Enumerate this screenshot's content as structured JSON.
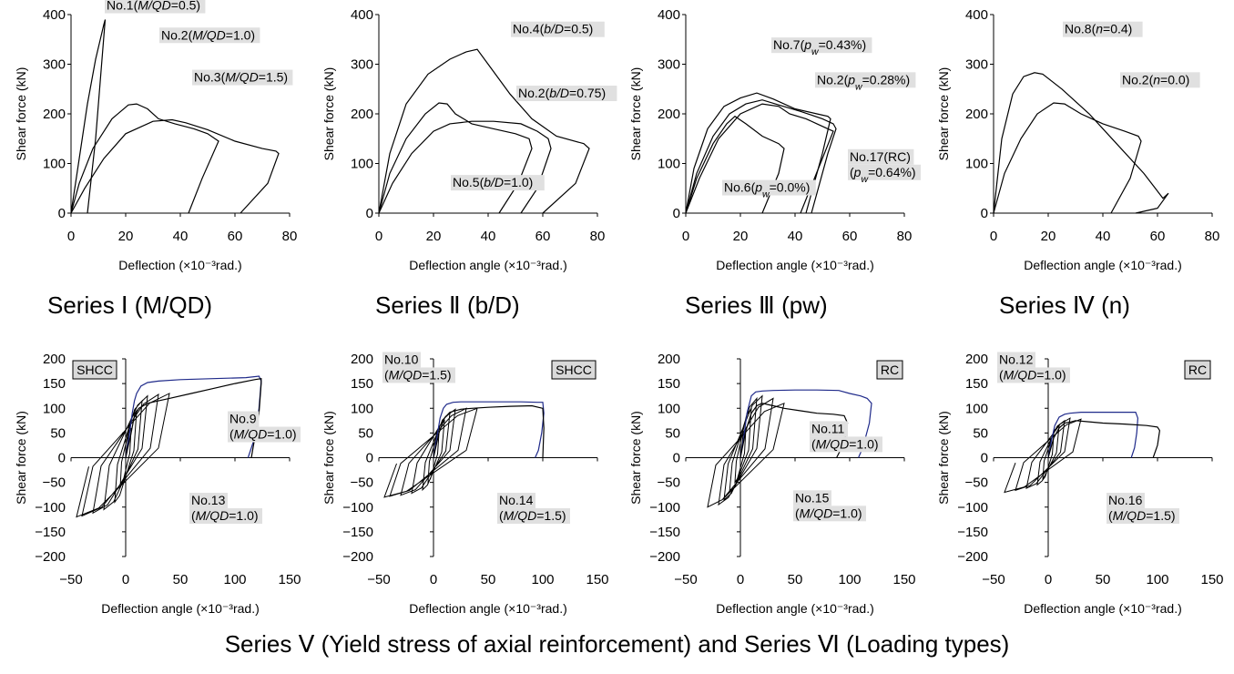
{
  "captions": {
    "series1": "Series Ⅰ (M/QD)",
    "series2": "Series Ⅱ (b/D)",
    "series3": "Series Ⅲ (pw)",
    "series4": "Series Ⅳ (n)",
    "bottom": "Series Ⅴ (Yield stress of axial reinforcement) and Series Ⅵ (Loading types)"
  },
  "chart_data": [
    {
      "id": "p1",
      "type": "line",
      "xlabel": "Deflection (×10⁻³rad.)",
      "ylabel": "Shear force (kN)",
      "xlim": [
        0,
        80
      ],
      "ylim": [
        0,
        400
      ],
      "xticks": [
        0,
        20,
        40,
        60,
        80
      ],
      "yticks": [
        0,
        100,
        200,
        300,
        400
      ],
      "series": [
        {
          "x": [
            0,
            3,
            6,
            9,
            12,
            12.5,
            9,
            6
          ],
          "y": [
            0,
            110,
            220,
            310,
            380,
            390,
            150,
            0
          ]
        },
        {
          "x": [
            0,
            3,
            8,
            15,
            21,
            24,
            28,
            32,
            38,
            45,
            50,
            54,
            48,
            43
          ],
          "y": [
            0,
            60,
            130,
            190,
            218,
            220,
            210,
            190,
            180,
            170,
            160,
            145,
            70,
            0
          ]
        },
        {
          "x": [
            0,
            5,
            12,
            20,
            30,
            37,
            42,
            50,
            60,
            70,
            75,
            76,
            72,
            62
          ],
          "y": [
            0,
            50,
            110,
            160,
            185,
            188,
            182,
            168,
            145,
            130,
            125,
            120,
            60,
            0
          ]
        }
      ],
      "annotations": [
        {
          "text": "No.1(M/QD=0.5)",
          "x": 13,
          "y": 410
        },
        {
          "text": "No.2(M/QD=1.0)",
          "x": 33,
          "y": 350
        },
        {
          "text": "No.3(M/QD=1.5)",
          "x": 45,
          "y": 265
        }
      ]
    },
    {
      "id": "p2",
      "type": "line",
      "xlabel": "Deflection angle (×10⁻³rad.)",
      "ylabel": "Shear force (kN)",
      "xlim": [
        0,
        80
      ],
      "ylim": [
        0,
        400
      ],
      "xticks": [
        0,
        20,
        40,
        60,
        80
      ],
      "yticks": [
        0,
        100,
        200,
        300,
        400
      ],
      "series": [
        {
          "x": [
            0,
            4,
            10,
            18,
            26,
            32,
            36,
            40,
            48,
            56,
            65,
            75,
            77,
            72,
            60
          ],
          "y": [
            0,
            120,
            220,
            280,
            310,
            325,
            330,
            300,
            240,
            190,
            155,
            140,
            130,
            60,
            0
          ]
        },
        {
          "x": [
            0,
            4,
            10,
            17,
            22,
            25,
            28,
            34,
            42,
            50,
            55,
            56,
            51,
            44
          ],
          "y": [
            0,
            80,
            150,
            200,
            222,
            220,
            200,
            180,
            170,
            160,
            150,
            130,
            60,
            0
          ]
        },
        {
          "x": [
            0,
            5,
            12,
            20,
            26,
            34,
            42,
            52,
            58,
            62,
            63,
            58,
            52
          ],
          "y": [
            0,
            60,
            120,
            165,
            180,
            185,
            185,
            180,
            165,
            150,
            130,
            50,
            0
          ]
        }
      ],
      "annotations": [
        {
          "text": "No.4(b/D=0.5)",
          "x": 49,
          "y": 362
        },
        {
          "text": "No.2(b/D=0.75)",
          "x": 51,
          "y": 233
        },
        {
          "text": "No.5(b/D=1.0)",
          "x": 27,
          "y": 53
        }
      ]
    },
    {
      "id": "p3",
      "type": "line",
      "xlabel": "Deflection angle (×10⁻³rad.)",
      "ylabel": "Shear force (kN)",
      "xlim": [
        0,
        80
      ],
      "ylim": [
        0,
        400
      ],
      "xticks": [
        0,
        20,
        40,
        60,
        80
      ],
      "yticks": [
        0,
        100,
        200,
        300,
        400
      ],
      "series": [
        {
          "x": [
            0,
            3,
            8,
            14,
            20,
            26,
            32,
            40,
            48,
            52,
            53,
            50,
            44
          ],
          "y": [
            0,
            90,
            170,
            215,
            232,
            242,
            230,
            210,
            200,
            195,
            190,
            120,
            0
          ]
        },
        {
          "x": [
            0,
            4,
            10,
            16,
            22,
            28,
            34,
            42,
            50,
            54,
            55,
            52,
            46
          ],
          "y": [
            0,
            80,
            155,
            200,
            220,
            228,
            218,
            205,
            190,
            180,
            170,
            120,
            0
          ]
        },
        {
          "x": [
            0,
            4,
            10,
            15,
            18,
            22,
            28,
            34,
            36,
            34,
            28
          ],
          "y": [
            0,
            70,
            140,
            180,
            195,
            180,
            155,
            140,
            130,
            80,
            0
          ]
        },
        {
          "x": [
            0,
            5,
            12,
            20,
            28,
            34,
            38,
            44,
            48,
            52,
            54,
            50,
            42
          ],
          "y": [
            0,
            70,
            150,
            200,
            220,
            215,
            200,
            190,
            180,
            170,
            165,
            110,
            0
          ]
        }
      ],
      "annotations": [
        {
          "text": "No.7(pw=0.43%)",
          "x": 32,
          "y": 330
        },
        {
          "text": "No.2(pw=0.28%)",
          "x": 48,
          "y": 260
        },
        {
          "text": "No.17(RC) (pw=0.64%)",
          "x": 60,
          "y": 105
        },
        {
          "text": "No.6(pw=0.0%)",
          "x": 14,
          "y": 43
        }
      ]
    },
    {
      "id": "p4",
      "type": "line",
      "xlabel": "Deflection angle (×10⁻³rad.)",
      "ylabel": "Shear force (kN)",
      "xlim": [
        0,
        80
      ],
      "ylim": [
        0,
        400
      ],
      "xticks": [
        0,
        20,
        40,
        60,
        80
      ],
      "yticks": [
        0,
        100,
        200,
        300,
        400
      ],
      "series": [
        {
          "x": [
            0,
            3,
            7,
            11,
            15,
            18,
            25,
            35,
            45,
            55,
            62,
            64,
            60,
            52
          ],
          "y": [
            0,
            150,
            240,
            275,
            283,
            280,
            250,
            200,
            140,
            80,
            30,
            40,
            10,
            0
          ]
        },
        {
          "x": [
            0,
            4,
            10,
            16,
            22,
            26,
            32,
            40,
            48,
            53,
            54,
            50,
            43
          ],
          "y": [
            0,
            80,
            150,
            200,
            222,
            220,
            200,
            180,
            165,
            155,
            145,
            70,
            0
          ]
        }
      ],
      "annotations": [
        {
          "text": "No.8(n=0.4)",
          "x": 26,
          "y": 362
        },
        {
          "text": "No.2(n=0.0)",
          "x": 47,
          "y": 260
        }
      ]
    },
    {
      "id": "p5",
      "type": "line",
      "xlabel": "Deflection angle (×10⁻³rad.)",
      "ylabel": "Shear force (kN)",
      "xlim": [
        -50,
        150
      ],
      "ylim": [
        -200,
        200
      ],
      "xticks": [
        -50,
        0,
        50,
        100,
        150
      ],
      "yticks": [
        -200,
        -150,
        -100,
        -50,
        0,
        50,
        100,
        150,
        200
      ],
      "series": [
        {
          "color": "#1f2a8a",
          "x": [
            0,
            3,
            6,
            8,
            10,
            14,
            20,
            30,
            50,
            80,
            110,
            122,
            124,
            122,
            118,
            112
          ],
          "y": [
            0,
            40,
            90,
            115,
            130,
            145,
            152,
            155,
            158,
            160,
            162,
            165,
            155,
            100,
            40,
            0
          ]
        },
        {
          "color": "#000000",
          "x": [
            0,
            5,
            8,
            12,
            20,
            30,
            40,
            60,
            80,
            100,
            118,
            124,
            124,
            122,
            115
          ],
          "y": [
            0,
            50,
            85,
            100,
            110,
            115,
            120,
            130,
            140,
            150,
            158,
            160,
            150,
            90,
            0
          ]
        }
      ],
      "cyclic": {
        "pos_peaks": [
          [
            5,
            60
          ],
          [
            10,
            95
          ],
          [
            15,
            115
          ],
          [
            20,
            125
          ],
          [
            30,
            128
          ],
          [
            40,
            130
          ]
        ],
        "neg_peaks": [
          [
            -5,
            -60
          ],
          [
            -10,
            -90
          ],
          [
            -20,
            -105
          ],
          [
            -30,
            -112
          ],
          [
            -40,
            -118
          ],
          [
            -45,
            -120
          ]
        ]
      },
      "tag": "SHCC",
      "annotations": [
        {
          "text": "No.9 (M/QD=1.0)",
          "x": 95,
          "y": 70
        },
        {
          "text": "No.13 (M/QD=1.0)",
          "x": 60,
          "y": -95
        }
      ]
    },
    {
      "id": "p6",
      "type": "line",
      "xlabel": "Deflection angle (×10⁻³rad.)",
      "ylabel": "Shear force (kN)",
      "xlim": [
        -50,
        150
      ],
      "ylim": [
        -200,
        200
      ],
      "xticks": [
        -50,
        0,
        50,
        100,
        150
      ],
      "yticks": [
        -200,
        -150,
        -100,
        -50,
        0,
        50,
        100,
        150,
        200
      ],
      "series": [
        {
          "color": "#1f2a8a",
          "x": [
            0,
            3,
            6,
            9,
            12,
            18,
            25,
            40,
            60,
            80,
            95,
            100,
            101,
            99,
            96,
            93
          ],
          "y": [
            0,
            40,
            80,
            100,
            108,
            112,
            113,
            113,
            113,
            113,
            112,
            112,
            90,
            50,
            15,
            0
          ]
        },
        {
          "color": "#000000",
          "x": [
            0,
            5,
            10,
            15,
            25,
            35,
            50,
            70,
            90,
            100,
            101,
            100
          ],
          "y": [
            0,
            50,
            80,
            92,
            98,
            100,
            102,
            104,
            105,
            100,
            60,
            0
          ]
        }
      ],
      "cyclic": {
        "pos_peaks": [
          [
            5,
            50
          ],
          [
            10,
            75
          ],
          [
            15,
            90
          ],
          [
            20,
            98
          ],
          [
            30,
            100
          ],
          [
            40,
            100
          ]
        ],
        "neg_peaks": [
          [
            -5,
            -50
          ],
          [
            -10,
            -65
          ],
          [
            -20,
            -72
          ],
          [
            -30,
            -76
          ],
          [
            -40,
            -78
          ],
          [
            -45,
            -80
          ]
        ]
      },
      "tag": "SHCC",
      "annotations": [
        {
          "text": "No.10 (M/QD=1.5)",
          "x": -45,
          "y": 190
        },
        {
          "text": "No.14 (M/QD=1.5)",
          "x": 60,
          "y": -95
        }
      ]
    },
    {
      "id": "p7",
      "type": "line",
      "xlabel": "Deflection angle (×10⁻³rad.)",
      "ylabel": "Shear force (kN)",
      "xlim": [
        -50,
        150
      ],
      "ylim": [
        -200,
        200
      ],
      "xticks": [
        -50,
        0,
        50,
        100,
        150
      ],
      "yticks": [
        -200,
        -150,
        -100,
        -50,
        0,
        50,
        100,
        150,
        200
      ],
      "series": [
        {
          "color": "#1f2a8a",
          "x": [
            0,
            3,
            6,
            10,
            14,
            20,
            30,
            50,
            70,
            90,
            100,
            110,
            116,
            120,
            118,
            112,
            108
          ],
          "y": [
            0,
            40,
            90,
            125,
            133,
            135,
            136,
            137,
            137,
            136,
            130,
            125,
            120,
            110,
            70,
            20,
            0
          ]
        },
        {
          "color": "#000000",
          "x": [
            0,
            5,
            10,
            15,
            20,
            30,
            40,
            55,
            70,
            85,
            95,
            98,
            95,
            88
          ],
          "y": [
            0,
            55,
            90,
            105,
            110,
            105,
            100,
            95,
            90,
            88,
            85,
            70,
            30,
            0
          ]
        }
      ],
      "cyclic": {
        "pos_peaks": [
          [
            5,
            60
          ],
          [
            10,
            100
          ],
          [
            15,
            120
          ],
          [
            20,
            125
          ],
          [
            30,
            120
          ],
          [
            40,
            110
          ]
        ],
        "neg_peaks": [
          [
            -5,
            -50
          ],
          [
            -10,
            -70
          ],
          [
            -15,
            -85
          ],
          [
            -20,
            -95
          ],
          [
            -30,
            -100
          ]
        ]
      },
      "tag": "RC",
      "annotations": [
        {
          "text": "No.11 (M/QD=1.0)",
          "x": 65,
          "y": 50
        },
        {
          "text": "No.15 (M/QD=1.0)",
          "x": 50,
          "y": -90
        }
      ]
    },
    {
      "id": "p8",
      "type": "line",
      "xlabel": "Deflection angle (×10⁻³rad.)",
      "ylabel": "Shear force (kN)",
      "xlim": [
        -50,
        150
      ],
      "ylim": [
        -200,
        200
      ],
      "xticks": [
        -50,
        0,
        50,
        100,
        150
      ],
      "yticks": [
        -200,
        -150,
        -100,
        -50,
        0,
        50,
        100,
        150,
        200
      ],
      "series": [
        {
          "color": "#1f2a8a",
          "x": [
            0,
            3,
            6,
            10,
            15,
            20,
            30,
            45,
            60,
            75,
            80,
            82,
            81,
            79,
            76
          ],
          "y": [
            0,
            35,
            65,
            82,
            88,
            90,
            92,
            92,
            92,
            92,
            92,
            80,
            50,
            20,
            0
          ]
        },
        {
          "color": "#000000",
          "x": [
            0,
            5,
            10,
            15,
            20,
            25,
            35,
            50,
            70,
            90,
            100,
            102,
            100,
            96
          ],
          "y": [
            0,
            40,
            60,
            70,
            72,
            75,
            73,
            70,
            68,
            65,
            62,
            55,
            25,
            0
          ]
        }
      ],
      "cyclic": {
        "pos_peaks": [
          [
            5,
            45
          ],
          [
            10,
            65
          ],
          [
            15,
            75
          ],
          [
            20,
            80
          ],
          [
            30,
            78
          ]
        ],
        "neg_peaks": [
          [
            -5,
            -45
          ],
          [
            -10,
            -55
          ],
          [
            -20,
            -62
          ],
          [
            -30,
            -66
          ],
          [
            -40,
            -70
          ]
        ]
      },
      "tag": "RC",
      "annotations": [
        {
          "text": "No.12 (M/QD=1.0)",
          "x": -45,
          "y": 190
        },
        {
          "text": "No.16 (M/QD=1.5)",
          "x": 55,
          "y": -95
        }
      ]
    }
  ]
}
